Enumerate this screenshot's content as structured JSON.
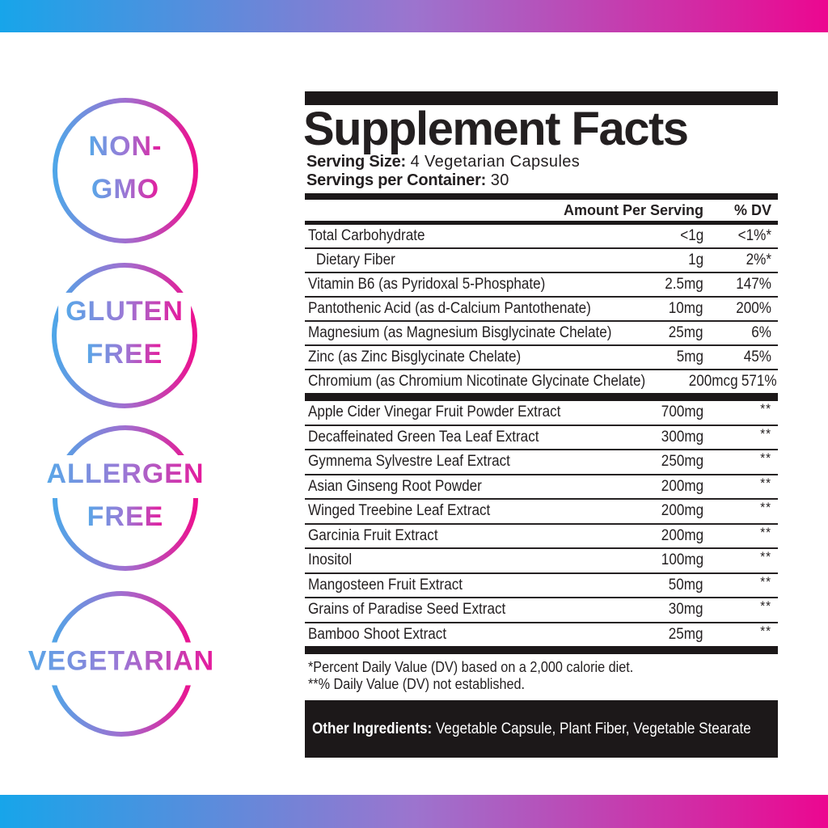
{
  "colors": {
    "gradient_start": "#17A5EA",
    "gradient_mid": "#9C74CE",
    "gradient_end": "#EC0790",
    "ink": "#231F20",
    "panel_bar": "#1C1819",
    "badge_text_start": "#58A7E8",
    "badge_text_end": "#E7189B"
  },
  "badges": [
    {
      "id": "non-gmo",
      "lines": [
        "NON-",
        "GMO"
      ]
    },
    {
      "id": "gluten-free",
      "lines": [
        "GLUTEN",
        "FREE"
      ]
    },
    {
      "id": "allergen-free",
      "lines": [
        "ALLERGEN",
        "FREE"
      ]
    },
    {
      "id": "vegetarian",
      "lines": [
        "VEGETARIAN"
      ]
    }
  ],
  "panel": {
    "title": "Supplement Facts",
    "serving_size_label": "Serving Size:",
    "serving_size_value": "4 Vegetarian Capsules",
    "servings_per_container_label": "Servings per Container:",
    "servings_per_container_value": "30",
    "columns": {
      "amount": "Amount Per Serving",
      "dv": "% DV"
    },
    "nutrients": [
      {
        "name": "Total Carbohydrate",
        "amount": "<1g",
        "dv": "<1%*",
        "indent": false
      },
      {
        "name": "Dietary Fiber",
        "amount": "1g",
        "dv": "2%*",
        "indent": true
      },
      {
        "name": "Vitamin B6 (as Pyridoxal 5-Phosphate)",
        "amount": "2.5mg",
        "dv": "147%",
        "indent": false
      },
      {
        "name": "Pantothenic Acid (as d-Calcium Pantothenate)",
        "amount": "10mg",
        "dv": "200%",
        "indent": false
      },
      {
        "name": "Magnesium (as Magnesium Bisglycinate Chelate)",
        "amount": "25mg",
        "dv": "6%",
        "indent": false
      },
      {
        "name": "Zinc (as Zinc Bisglycinate Chelate)",
        "amount": "5mg",
        "dv": "45%",
        "indent": false
      },
      {
        "name": "Chromium (as Chromium Nicotinate Glycinate Chelate)",
        "amount": "200mcg",
        "dv": "571%",
        "indent": false
      }
    ],
    "blend": [
      {
        "name": "Apple Cider Vinegar Fruit Powder Extract",
        "amount": "700mg",
        "dv": "**"
      },
      {
        "name": "Decaffeinated Green Tea Leaf Extract",
        "amount": "300mg",
        "dv": "**"
      },
      {
        "name": "Gymnema Sylvestre Leaf Extract",
        "amount": "250mg",
        "dv": "**"
      },
      {
        "name": "Asian Ginseng Root Powder",
        "amount": "200mg",
        "dv": "**"
      },
      {
        "name": "Winged Treebine Leaf Extract",
        "amount": "200mg",
        "dv": "**"
      },
      {
        "name": "Garcinia Fruit Extract",
        "amount": "200mg",
        "dv": "**"
      },
      {
        "name": "Inositol",
        "amount": "100mg",
        "dv": "**"
      },
      {
        "name": "Mangosteen Fruit Extract",
        "amount": "50mg",
        "dv": "**"
      },
      {
        "name": "Grains of Paradise Seed Extract",
        "amount": "30mg",
        "dv": "**"
      },
      {
        "name": "Bamboo Shoot Extract",
        "amount": "25mg",
        "dv": "**"
      }
    ],
    "footnotes": [
      "*Percent Daily Value (DV) based on a 2,000 calorie diet.",
      "**% Daily Value (DV) not established."
    ],
    "other_ingredients_label": "Other Ingredients:",
    "other_ingredients_value": "Vegetable Capsule, Plant Fiber, Vegetable Stearate"
  }
}
